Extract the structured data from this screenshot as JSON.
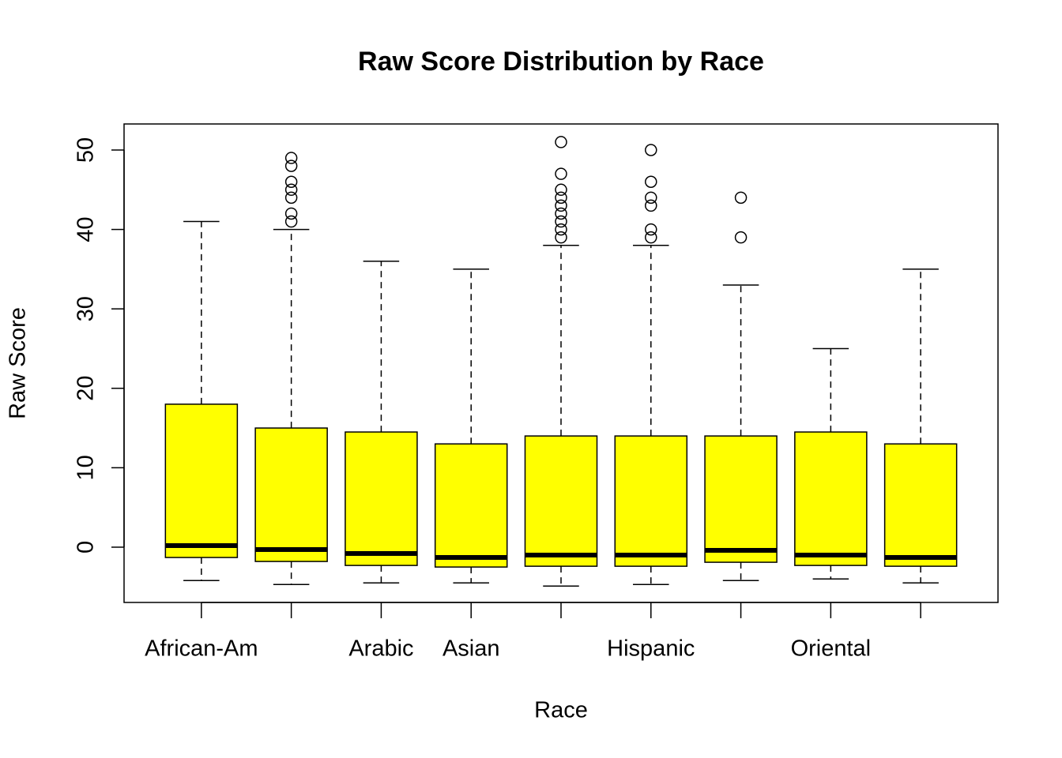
{
  "chart_data": {
    "type": "boxplot",
    "title": "Raw Score Distribution by Race",
    "xlabel": "Race",
    "ylabel": "Raw Score",
    "categories": [
      "African-Am",
      null,
      "Arabic",
      "Asian",
      null,
      "Hispanic",
      null,
      "Oriental",
      null
    ],
    "color": "#ffff00",
    "boxes": [
      {
        "whisker_low": -4.2,
        "q1": -1.3,
        "median": 0.2,
        "q3": 18,
        "whisker_high": 41,
        "outliers": []
      },
      {
        "whisker_low": -4.7,
        "q1": -1.8,
        "median": -0.3,
        "q3": 15,
        "whisker_high": 40,
        "outliers": [
          41,
          42,
          44,
          45,
          46,
          48,
          49
        ]
      },
      {
        "whisker_low": -4.5,
        "q1": -2.3,
        "median": -0.8,
        "q3": 14.5,
        "whisker_high": 36,
        "outliers": []
      },
      {
        "whisker_low": -4.5,
        "q1": -2.5,
        "median": -1.3,
        "q3": 13,
        "whisker_high": 35,
        "outliers": []
      },
      {
        "whisker_low": -4.9,
        "q1": -2.4,
        "median": -1.0,
        "q3": 14,
        "whisker_high": 38,
        "outliers": [
          39,
          40,
          41,
          42,
          43,
          44,
          45,
          47,
          51
        ]
      },
      {
        "whisker_low": -4.7,
        "q1": -2.4,
        "median": -1.0,
        "q3": 14,
        "whisker_high": 38,
        "outliers": [
          39,
          40,
          43,
          44,
          46,
          50
        ]
      },
      {
        "whisker_low": -4.2,
        "q1": -1.9,
        "median": -0.4,
        "q3": 14,
        "whisker_high": 33,
        "outliers": [
          39,
          44
        ]
      },
      {
        "whisker_low": -4.0,
        "q1": -2.3,
        "median": -1.0,
        "q3": 14.5,
        "whisker_high": 25,
        "outliers": []
      },
      {
        "whisker_low": -4.5,
        "q1": -2.4,
        "median": -1.3,
        "q3": 13,
        "whisker_high": 35,
        "outliers": []
      }
    ],
    "ylim": [
      -6.96,
      53.28
    ],
    "yticks": [
      0,
      10,
      20,
      30,
      40,
      50
    ]
  }
}
